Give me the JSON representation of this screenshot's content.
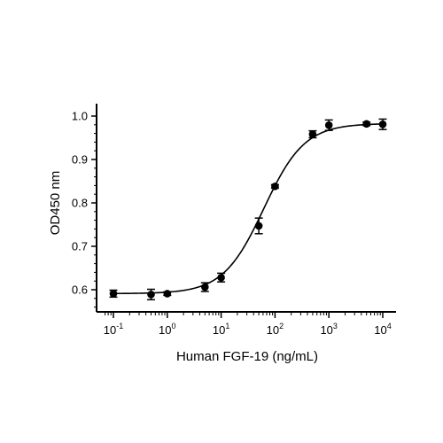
{
  "chart_data": {
    "type": "scatter",
    "title": "",
    "xlabel": "Human FGF-19 (ng/mL)",
    "ylabel": "OD450 nm",
    "x_scale": "log",
    "xlim": [
      0.07,
      14000
    ],
    "ylim": [
      0.56,
      1.0
    ],
    "x_ticks": [
      0.1,
      1,
      10,
      100,
      1000,
      10000
    ],
    "x_tick_labels": [
      {
        "base": "10",
        "exp": "-1"
      },
      {
        "base": "10",
        "exp": "0"
      },
      {
        "base": "10",
        "exp": "1"
      },
      {
        "base": "10",
        "exp": "2"
      },
      {
        "base": "10",
        "exp": "3"
      },
      {
        "base": "10",
        "exp": "4"
      }
    ],
    "y_ticks": [
      0.6,
      0.7,
      0.8,
      0.9,
      1.0
    ],
    "y_tick_labels": [
      "0.6",
      "0.7",
      "0.8",
      "0.9",
      "1.0"
    ],
    "grid": false,
    "legend": "none",
    "series": [
      {
        "points": [
          {
            "x": 0.1,
            "y": 0.591,
            "err": 0.008
          },
          {
            "x": 0.5,
            "y": 0.589,
            "err": 0.012
          },
          {
            "x": 1,
            "y": 0.591,
            "err": 0.004
          },
          {
            "x": 5,
            "y": 0.606,
            "err": 0.01
          },
          {
            "x": 10,
            "y": 0.628,
            "err": 0.01
          },
          {
            "x": 50,
            "y": 0.747,
            "err": 0.018
          },
          {
            "x": 100,
            "y": 0.838,
            "err": 0.004
          },
          {
            "x": 500,
            "y": 0.958,
            "err": 0.008
          },
          {
            "x": 1000,
            "y": 0.979,
            "err": 0.012
          },
          {
            "x": 5000,
            "y": 0.982,
            "err": 0.004
          },
          {
            "x": 10000,
            "y": 0.981,
            "err": 0.012
          }
        ],
        "fit": {
          "model": "4PL",
          "bottom": 0.591,
          "top": 0.983,
          "ec50": 62,
          "hill": 1.15
        }
      }
    ],
    "color": "#000000"
  }
}
